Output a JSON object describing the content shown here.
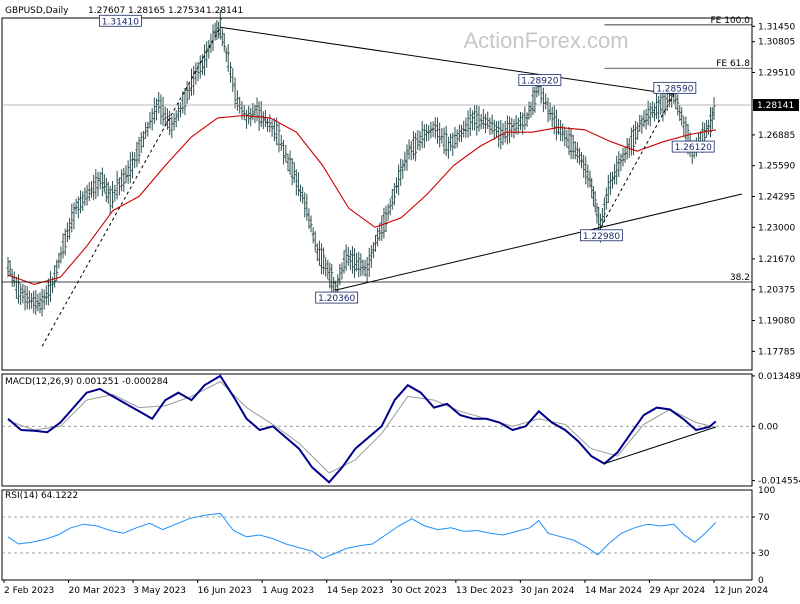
{
  "chart_data": {
    "type": "ohlc",
    "symbol": "GBPUSD",
    "timeframe": "Daily",
    "watermark": "ActionForex.com",
    "header": {
      "symbol_label": "GBPUSD,Daily",
      "open": "1.27607",
      "high": "1.28165",
      "low": "1.27534",
      "close": "1.28141"
    },
    "x_labels": [
      "2 Feb 2023",
      "20 Mar 2023",
      "3 May 2023",
      "16 Jun 2023",
      "1 Aug 2023",
      "14 Sep 2023",
      "30 Oct 2023",
      "13 Dec 2023",
      "30 Jan 2024",
      "14 Mar 2024",
      "29 Apr 2024",
      "12 Jun 2024"
    ],
    "price_panel": {
      "ylim": [
        1.17,
        1.318
      ],
      "ticks": [
        "1.31450",
        "1.30805",
        "1.29510",
        "1.28141",
        "1.26885",
        "1.25590",
        "1.24295",
        "1.23000",
        "1.21670",
        "1.20375",
        "1.19080",
        "1.17785"
      ],
      "tick_values": [
        1.3145,
        1.30805,
        1.2951,
        1.28141,
        1.26885,
        1.2559,
        1.24295,
        1.23,
        1.2167,
        1.20375,
        1.1908,
        1.17785
      ],
      "current_price": 1.28141,
      "current_price_label": "1.28141",
      "fib_levels": [
        {
          "label": "FE 100.0",
          "value": 1.3151
        },
        {
          "label": "FE 61.8",
          "value": 1.2969
        },
        {
          "label": "38.2",
          "value": 1.207
        }
      ],
      "anchors": [
        {
          "label": "1.31410",
          "value": 1.3141,
          "x": 85
        },
        {
          "label": "1.20360",
          "value": 1.2036,
          "x": 250
        },
        {
          "label": "1.28920",
          "value": 1.2892,
          "x": 405
        },
        {
          "label": "1.22980",
          "value": 1.2298,
          "x": 452
        },
        {
          "label": "1.28590",
          "value": 1.2859,
          "x": 508
        },
        {
          "label": "1.26120",
          "value": 1.2612,
          "x": 522
        }
      ],
      "close_path": [
        [
          0,
          1.214
        ],
        [
          8,
          1.203
        ],
        [
          18,
          1.199
        ],
        [
          26,
          1.198
        ],
        [
          34,
          1.206
        ],
        [
          42,
          1.222
        ],
        [
          52,
          1.238
        ],
        [
          62,
          1.245
        ],
        [
          72,
          1.25
        ],
        [
          78,
          1.242
        ],
        [
          85,
          1.248
        ],
        [
          95,
          1.256
        ],
        [
          105,
          1.27
        ],
        [
          115,
          1.282
        ],
        [
          125,
          1.272
        ],
        [
          135,
          1.284
        ],
        [
          145,
          1.296
        ],
        [
          150,
          1.3
        ],
        [
          158,
          1.312
        ],
        [
          162,
          1.3141
        ],
        [
          168,
          1.3
        ],
        [
          175,
          1.283
        ],
        [
          182,
          1.276
        ],
        [
          190,
          1.279
        ],
        [
          198,
          1.274
        ],
        [
          205,
          1.27
        ],
        [
          212,
          1.26
        ],
        [
          220,
          1.25
        ],
        [
          228,
          1.238
        ],
        [
          236,
          1.22
        ],
        [
          244,
          1.212
        ],
        [
          250,
          1.2036
        ],
        [
          258,
          1.218
        ],
        [
          266,
          1.215
        ],
        [
          274,
          1.212
        ],
        [
          282,
          1.226
        ],
        [
          290,
          1.236
        ],
        [
          298,
          1.25
        ],
        [
          306,
          1.262
        ],
        [
          316,
          1.268
        ],
        [
          326,
          1.272
        ],
        [
          336,
          1.264
        ],
        [
          346,
          1.27
        ],
        [
          356,
          1.276
        ],
        [
          366,
          1.274
        ],
        [
          376,
          1.269
        ],
        [
          386,
          1.272
        ],
        [
          396,
          1.276
        ],
        [
          405,
          1.2892
        ],
        [
          412,
          1.28
        ],
        [
          420,
          1.272
        ],
        [
          428,
          1.266
        ],
        [
          436,
          1.26
        ],
        [
          444,
          1.25
        ],
        [
          448,
          1.24
        ],
        [
          452,
          1.2298
        ],
        [
          458,
          1.246
        ],
        [
          466,
          1.256
        ],
        [
          474,
          1.264
        ],
        [
          482,
          1.273
        ],
        [
          490,
          1.278
        ],
        [
          498,
          1.281
        ],
        [
          508,
          1.2859
        ],
        [
          514,
          1.276
        ],
        [
          522,
          1.2612
        ],
        [
          530,
          1.268
        ],
        [
          536,
          1.274
        ],
        [
          540,
          1.2814
        ]
      ],
      "ma_path": [
        [
          0,
          1.21
        ],
        [
          20,
          1.206
        ],
        [
          40,
          1.209
        ],
        [
          60,
          1.222
        ],
        [
          80,
          1.237
        ],
        [
          100,
          1.243
        ],
        [
          120,
          1.256
        ],
        [
          140,
          1.268
        ],
        [
          160,
          1.276
        ],
        [
          180,
          1.277
        ],
        [
          200,
          1.276
        ],
        [
          220,
          1.27
        ],
        [
          240,
          1.256
        ],
        [
          260,
          1.238
        ],
        [
          280,
          1.23
        ],
        [
          300,
          1.234
        ],
        [
          320,
          1.244
        ],
        [
          340,
          1.256
        ],
        [
          360,
          1.264
        ],
        [
          380,
          1.27
        ],
        [
          400,
          1.27
        ],
        [
          420,
          1.272
        ],
        [
          440,
          1.271
        ],
        [
          460,
          1.266
        ],
        [
          480,
          1.262
        ],
        [
          500,
          1.266
        ],
        [
          520,
          1.269
        ],
        [
          540,
          1.271
        ]
      ],
      "trendlines": [
        {
          "from": [
            162,
            1.3141
          ],
          "to": [
            508,
            1.2859
          ]
        },
        {
          "from": [
            250,
            1.2036
          ],
          "to": [
            560,
            1.244
          ]
        },
        {
          "from": [
            26,
            1.18
          ],
          "to": [
            162,
            1.3141
          ],
          "dashed": true
        },
        {
          "from": [
            452,
            1.2298
          ],
          "to": [
            508,
            1.2859
          ],
          "dashed": true
        }
      ]
    },
    "macd_panel": {
      "label": "MACD(12,26,9) 0.001251 -0.000284",
      "ylim": [
        -0.016,
        0.014
      ],
      "ticks": [
        "0.013489",
        "0.00",
        "-0.014554"
      ],
      "tick_values": [
        0.013489,
        0.0,
        -0.014554
      ],
      "macd_path": [
        [
          0,
          0.002
        ],
        [
          10,
          -0.001
        ],
        [
          20,
          -0.0012
        ],
        [
          30,
          -0.0016
        ],
        [
          40,
          0.001
        ],
        [
          50,
          0.005
        ],
        [
          60,
          0.009
        ],
        [
          70,
          0.01
        ],
        [
          80,
          0.008
        ],
        [
          90,
          0.006
        ],
        [
          100,
          0.004
        ],
        [
          110,
          0.002
        ],
        [
          120,
          0.007
        ],
        [
          130,
          0.009
        ],
        [
          140,
          0.007
        ],
        [
          150,
          0.011
        ],
        [
          162,
          0.0135
        ],
        [
          172,
          0.008
        ],
        [
          182,
          0.002
        ],
        [
          192,
          -0.001
        ],
        [
          202,
          0.0
        ],
        [
          212,
          -0.003
        ],
        [
          222,
          -0.006
        ],
        [
          232,
          -0.011
        ],
        [
          245,
          -0.015
        ],
        [
          255,
          -0.011
        ],
        [
          265,
          -0.006
        ],
        [
          275,
          -0.003
        ],
        [
          285,
          0.0
        ],
        [
          295,
          0.007
        ],
        [
          305,
          0.011
        ],
        [
          315,
          0.009
        ],
        [
          325,
          0.005
        ],
        [
          335,
          0.006
        ],
        [
          345,
          0.003
        ],
        [
          355,
          0.002
        ],
        [
          365,
          0.002
        ],
        [
          375,
          0.001
        ],
        [
          385,
          -0.001
        ],
        [
          395,
          0.0
        ],
        [
          405,
          0.004
        ],
        [
          415,
          0.001
        ],
        [
          425,
          -0.001
        ],
        [
          435,
          -0.004
        ],
        [
          445,
          -0.008
        ],
        [
          455,
          -0.01
        ],
        [
          465,
          -0.007
        ],
        [
          475,
          -0.002
        ],
        [
          485,
          0.003
        ],
        [
          495,
          0.005
        ],
        [
          505,
          0.0045
        ],
        [
          515,
          0.002
        ],
        [
          525,
          -0.001
        ],
        [
          535,
          -0.0002
        ],
        [
          540,
          0.0013
        ]
      ],
      "signal_path": [
        [
          0,
          0.0015
        ],
        [
          20,
          -0.001
        ],
        [
          40,
          0.0
        ],
        [
          60,
          0.007
        ],
        [
          80,
          0.0085
        ],
        [
          100,
          0.005
        ],
        [
          120,
          0.0055
        ],
        [
          140,
          0.008
        ],
        [
          162,
          0.012
        ],
        [
          182,
          0.005
        ],
        [
          202,
          0.0005
        ],
        [
          222,
          -0.0045
        ],
        [
          245,
          -0.0125
        ],
        [
          265,
          -0.009
        ],
        [
          285,
          -0.002
        ],
        [
          305,
          0.008
        ],
        [
          325,
          0.007
        ],
        [
          345,
          0.004
        ],
        [
          365,
          0.002
        ],
        [
          385,
          0.0
        ],
        [
          405,
          0.002
        ],
        [
          425,
          0.0005
        ],
        [
          445,
          -0.006
        ],
        [
          465,
          -0.008
        ],
        [
          485,
          0.0005
        ],
        [
          505,
          0.0045
        ],
        [
          525,
          0.001
        ],
        [
          540,
          -0.0003
        ]
      ],
      "trendline": {
        "from": [
          455,
          -0.01
        ],
        "to": [
          540,
          -0.0002
        ]
      }
    },
    "rsi_panel": {
      "label": "RSI(14) 64.1222",
      "ylim": [
        0,
        100
      ],
      "ticks": [
        "70",
        "30"
      ],
      "tick_values": [
        70,
        30
      ],
      "extra_ticks": [
        "100",
        "0"
      ],
      "rsi_path": [
        [
          0,
          48
        ],
        [
          8,
          40
        ],
        [
          18,
          42
        ],
        [
          28,
          45
        ],
        [
          38,
          50
        ],
        [
          48,
          58
        ],
        [
          58,
          62
        ],
        [
          68,
          60
        ],
        [
          78,
          55
        ],
        [
          88,
          52
        ],
        [
          98,
          58
        ],
        [
          108,
          63
        ],
        [
          118,
          56
        ],
        [
          128,
          62
        ],
        [
          138,
          68
        ],
        [
          150,
          72
        ],
        [
          162,
          74
        ],
        [
          172,
          55
        ],
        [
          182,
          48
        ],
        [
          192,
          50
        ],
        [
          202,
          46
        ],
        [
          212,
          40
        ],
        [
          222,
          36
        ],
        [
          232,
          32
        ],
        [
          240,
          24
        ],
        [
          250,
          30
        ],
        [
          258,
          35
        ],
        [
          268,
          38
        ],
        [
          278,
          40
        ],
        [
          288,
          50
        ],
        [
          298,
          60
        ],
        [
          308,
          68
        ],
        [
          318,
          60
        ],
        [
          328,
          56
        ],
        [
          338,
          58
        ],
        [
          348,
          54
        ],
        [
          358,
          55
        ],
        [
          368,
          52
        ],
        [
          378,
          50
        ],
        [
          388,
          54
        ],
        [
          398,
          58
        ],
        [
          405,
          66
        ],
        [
          412,
          52
        ],
        [
          422,
          48
        ],
        [
          432,
          44
        ],
        [
          442,
          36
        ],
        [
          450,
          28
        ],
        [
          458,
          40
        ],
        [
          468,
          52
        ],
        [
          478,
          58
        ],
        [
          488,
          62
        ],
        [
          498,
          60
        ],
        [
          508,
          62
        ],
        [
          516,
          50
        ],
        [
          524,
          42
        ],
        [
          532,
          52
        ],
        [
          540,
          64
        ]
      ]
    }
  }
}
